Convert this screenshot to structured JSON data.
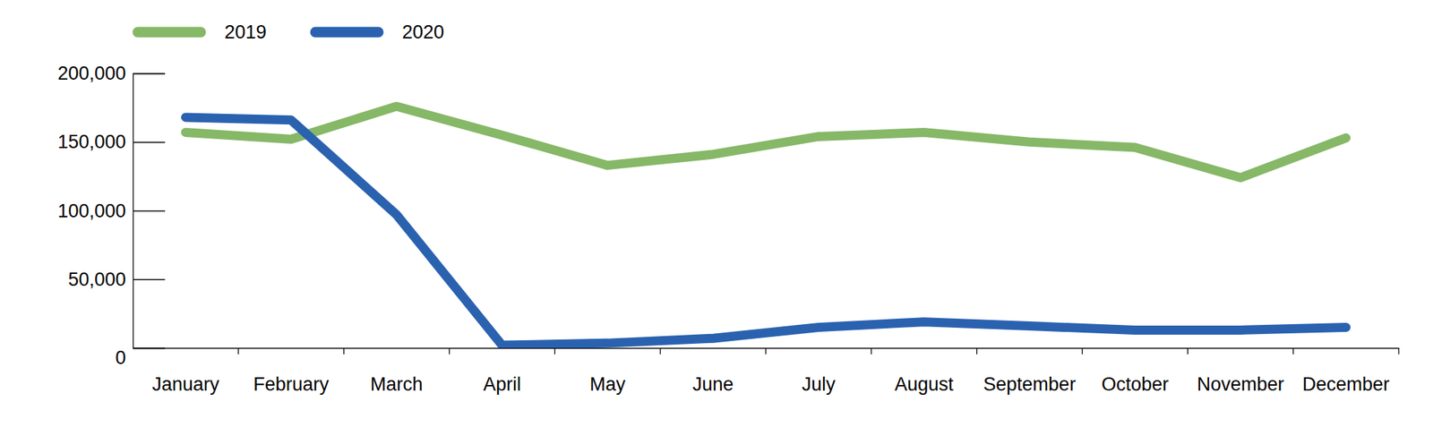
{
  "chart_data": {
    "type": "line",
    "categories": [
      "January",
      "February",
      "March",
      "April",
      "May",
      "June",
      "July",
      "August",
      "September",
      "October",
      "November",
      "December"
    ],
    "series": [
      {
        "name": "2019",
        "color": "#86b867",
        "values": [
          157000,
          152000,
          176000,
          155000,
          133000,
          141000,
          154000,
          157000,
          150000,
          146000,
          124000,
          153000
        ]
      },
      {
        "name": "2020",
        "color": "#2a62b0",
        "values": [
          168000,
          166000,
          97000,
          2000,
          3500,
          7000,
          15000,
          19000,
          16000,
          13000,
          13000,
          15000
        ]
      }
    ],
    "ylim": [
      0,
      200000
    ],
    "yticks": [
      0,
      {
        "value": 50000,
        "label": "50,000"
      },
      {
        "value": 100000,
        "label": "100,000"
      },
      {
        "value": 150000,
        "label": "150,000"
      },
      {
        "value": 200000,
        "label": "200,000"
      }
    ],
    "grid": false,
    "legend": "top-left"
  }
}
